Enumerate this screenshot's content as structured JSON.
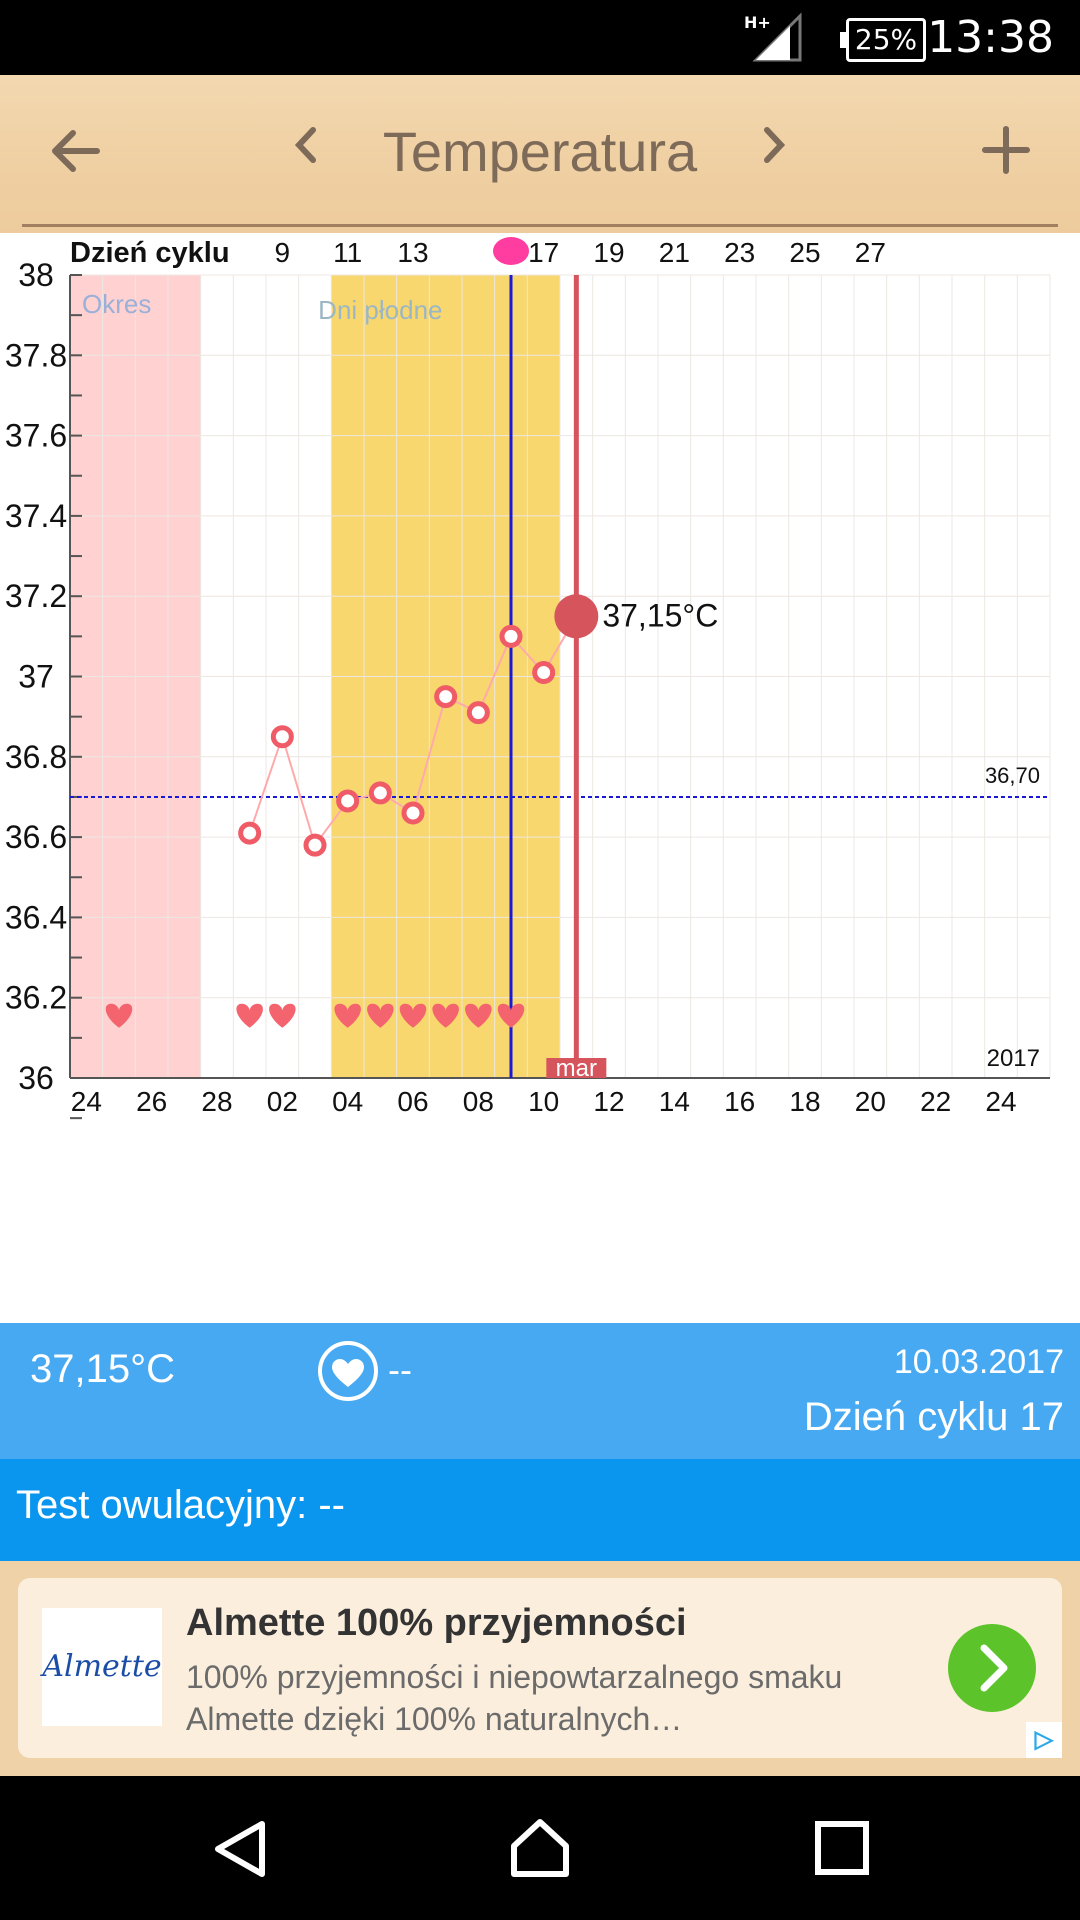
{
  "status": {
    "time": "13:38",
    "battery": "25%",
    "network": "H+"
  },
  "appbar": {
    "title": "Temperatura",
    "back_icon": "arrow-left-icon",
    "prev_icon": "chevron-left-icon",
    "next_icon": "chevron-right-icon",
    "add_icon": "plus-icon"
  },
  "chart_data": {
    "type": "line",
    "y_axis": {
      "min": 36,
      "max": 38,
      "step": 0.2,
      "labels": [
        "38",
        "37.8",
        "37.6",
        "37.4",
        "37.2",
        "37",
        "36.8",
        "36.6",
        "36.4",
        "36.2",
        "36"
      ]
    },
    "cycle_label": "Dzień cyklu",
    "cycle_ticks": [
      "9",
      "11",
      "13",
      "",
      "17",
      "19",
      "21",
      "23",
      "25",
      "27"
    ],
    "date_ticks": [
      "24",
      "26",
      "28",
      "02",
      "04",
      "06",
      "08",
      "10",
      "12",
      "14",
      "16",
      "18",
      "20",
      "22",
      "24"
    ],
    "month_label": "mar",
    "year_label": "2017",
    "period_label": "Okres",
    "fertile_label": "Dni płodne",
    "coverline": {
      "value": 36.7,
      "label": "36,70"
    },
    "series": [
      {
        "points": [
          {
            "x": 5,
            "y": 36.61
          },
          {
            "x": 6,
            "y": 36.85
          },
          {
            "x": 7,
            "y": 36.58
          },
          {
            "x": 8,
            "y": 36.69
          },
          {
            "x": 9,
            "y": 36.71
          },
          {
            "x": 10,
            "y": 36.66
          },
          {
            "x": 11,
            "y": 36.95
          },
          {
            "x": 12,
            "y": 36.91
          },
          {
            "x": 13,
            "y": 37.1
          },
          {
            "x": 14,
            "y": 37.01
          },
          {
            "x": 15,
            "y": 37.15
          }
        ]
      }
    ],
    "current": {
      "x": 15,
      "y": 37.15,
      "label": "37,15°C"
    },
    "period_days": [
      1,
      4
    ],
    "fertile_days": [
      8,
      14
    ],
    "ovulation_day": 13,
    "today_day": 15,
    "heart_days": [
      1,
      5,
      6,
      8,
      9,
      10,
      11,
      12,
      13
    ],
    "colors": {
      "period": "#ffd1d1",
      "fertile": "#f8d76e",
      "line": "#ffaaaa",
      "point": "#ef5b66",
      "today": "#d6545c",
      "ovulation": "#1a1ad6",
      "coverline": "#1a1ad6",
      "marker": "#ff3da0"
    }
  },
  "info": {
    "temperature": "37,15°C",
    "sex": "--",
    "date": "10.03.2017",
    "cycle_day": "Dzień cyklu 17",
    "heart_icon": "heart-circle-icon"
  },
  "ovulation_test": {
    "text": "Test owulacyjny: --"
  },
  "ad": {
    "logo": "Almette",
    "title": "Almette 100% przyjemności",
    "desc": "100% przyjemności i niepowtarzalnego smaku Almette dzięki 100% naturalnych…",
    "go_icon": "chevron-right-icon",
    "badge_icon": "adchoices-icon"
  },
  "nav": {
    "back": "back-triangle-icon",
    "home": "home-icon",
    "recents": "recents-square-icon"
  }
}
